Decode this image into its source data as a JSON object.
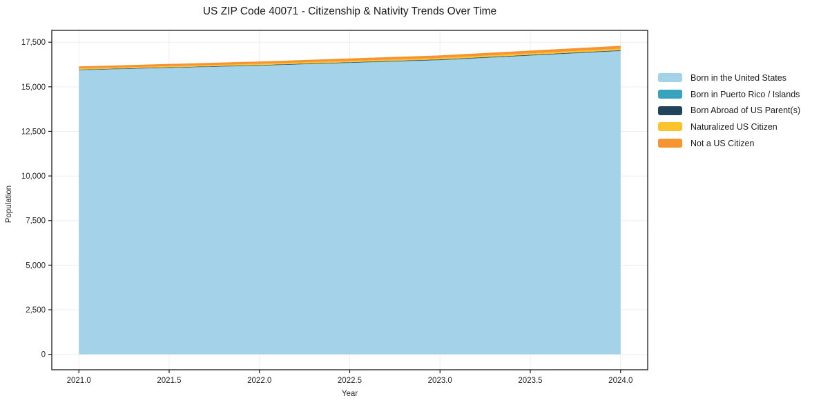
{
  "title": "US ZIP Code 40071 - Citizenship & Nativity Trends Over Time",
  "chart_data": {
    "type": "area",
    "stacked": true,
    "title": "US ZIP Code 40071 - Citizenship & Nativity Trends Over Time",
    "xlabel": "Year",
    "ylabel": "Population",
    "x": [
      2021,
      2022,
      2023,
      2024
    ],
    "series": [
      {
        "name": "Born in the United States",
        "color": "#a4d2e9",
        "values": [
          15930,
          16180,
          16490,
          17000
        ]
      },
      {
        "name": "Born in Puerto Rico / Islands",
        "color": "#38a3bf",
        "values": [
          12,
          12,
          14,
          15
        ]
      },
      {
        "name": "Born Abroad of US Parent(s)",
        "color": "#21445a",
        "values": [
          25,
          28,
          32,
          35
        ]
      },
      {
        "name": "Naturalized US Citizen",
        "color": "#fcc32d",
        "values": [
          60,
          70,
          80,
          90
        ]
      },
      {
        "name": "Not a US Citizen",
        "color": "#f79430",
        "values": [
          115,
          130,
          145,
          160
        ]
      }
    ],
    "x_ticks": [
      2021.0,
      2021.5,
      2022.0,
      2022.5,
      2023.0,
      2023.5,
      2024.0
    ],
    "x_tick_labels": [
      "2021.0",
      "2021.5",
      "2022.0",
      "2022.5",
      "2023.0",
      "2023.5",
      "2024.0"
    ],
    "y_ticks": [
      0,
      2500,
      5000,
      7500,
      10000,
      12500,
      15000,
      17500
    ],
    "y_tick_labels": [
      "0",
      "2,500",
      "5,000",
      "7,500",
      "10,000",
      "12,500",
      "15,000",
      "17,500"
    ],
    "xlim": [
      2020.85,
      2024.15
    ],
    "ylim": [
      -865,
      18165
    ],
    "grid": true,
    "grid_color": "#ededed",
    "spine_color": "#1a1a1a",
    "tick_text_color": "#262626",
    "legend_position": "right",
    "totals": [
      16142,
      16420,
      16761,
      17300
    ]
  }
}
